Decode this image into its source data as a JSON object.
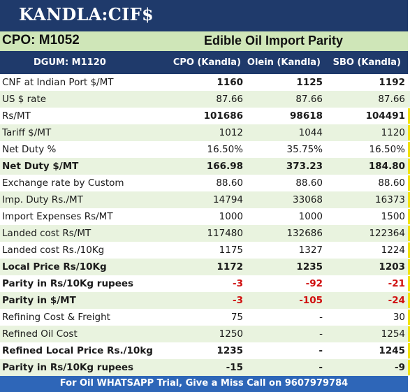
{
  "title": "KANDLA:CIF$",
  "subheader": {
    "code": "CPO: M1052",
    "subject": "Edible Oil Import Parity"
  },
  "columns": [
    "DGUM: M1120",
    "CPO (Kandla)",
    "Olein (Kandla)",
    "SBO (Kandla)"
  ],
  "rows": [
    {
      "label": "CNF at Indian Port $/MT",
      "cpo": "1160",
      "olein": "1125",
      "sbo": "1192",
      "bold_values": true,
      "bold_label": false,
      "negative": false,
      "marker": false
    },
    {
      "label": "US $ rate",
      "cpo": "87.66",
      "olein": "87.66",
      "sbo": "87.66",
      "bold_values": false,
      "bold_label": false,
      "negative": false,
      "marker": false
    },
    {
      "label": "Rs/MT",
      "cpo": "101686",
      "olein": "98618",
      "sbo": "104491",
      "bold_values": true,
      "bold_label": false,
      "negative": false,
      "marker": true
    },
    {
      "label": "Tariff $/MT",
      "cpo": "1012",
      "olein": "1044",
      "sbo": "1120",
      "bold_values": false,
      "bold_label": false,
      "negative": false,
      "marker": true
    },
    {
      "label": "Net Duty %",
      "cpo": "16.50%",
      "olein": "35.75%",
      "sbo": "16.50%",
      "bold_values": false,
      "bold_label": false,
      "negative": false,
      "marker": true
    },
    {
      "label": "Net Duty $/MT",
      "cpo": "166.98",
      "olein": "373.23",
      "sbo": "184.80",
      "bold_values": true,
      "bold_label": true,
      "negative": false,
      "marker": true
    },
    {
      "label": "Exchange rate by Custom",
      "cpo": "88.60",
      "olein": "88.60",
      "sbo": "88.60",
      "bold_values": false,
      "bold_label": false,
      "negative": false,
      "marker": true
    },
    {
      "label": "Imp. Duty Rs./MT",
      "cpo": "14794",
      "olein": "33068",
      "sbo": "16373",
      "bold_values": false,
      "bold_label": false,
      "negative": false,
      "marker": true
    },
    {
      "label": "Import Expenses Rs/MT",
      "cpo": "1000",
      "olein": "1000",
      "sbo": "1500",
      "bold_values": false,
      "bold_label": false,
      "negative": false,
      "marker": true
    },
    {
      "label": "Landed cost Rs/MT",
      "cpo": "117480",
      "olein": "132686",
      "sbo": "122364",
      "bold_values": false,
      "bold_label": false,
      "negative": false,
      "marker": true
    },
    {
      "label": "Landed cost Rs./10Kg",
      "cpo": "1175",
      "olein": "1327",
      "sbo": "1224",
      "bold_values": false,
      "bold_label": false,
      "negative": false,
      "marker": true
    },
    {
      "label": "Local Price Rs/10Kg",
      "cpo": "1172",
      "olein": "1235",
      "sbo": "1203",
      "bold_values": true,
      "bold_label": true,
      "negative": false,
      "marker": true
    },
    {
      "label": "Parity in Rs/10Kg rupees",
      "cpo": "-3",
      "olein": "-92",
      "sbo": "-21",
      "bold_values": true,
      "bold_label": true,
      "negative": true,
      "marker": true
    },
    {
      "label": "Parity in $/MT",
      "cpo": "-3",
      "olein": "-105",
      "sbo": "-24",
      "bold_values": true,
      "bold_label": true,
      "negative": true,
      "marker": true
    },
    {
      "label": "Refining Cost & Freight",
      "cpo": "75",
      "olein": "-",
      "sbo": "30",
      "bold_values": false,
      "bold_label": false,
      "negative": false,
      "marker": true
    },
    {
      "label": "Refined Oil Cost",
      "cpo": "1250",
      "olein": "-",
      "sbo": "1254",
      "bold_values": false,
      "bold_label": false,
      "negative": false,
      "marker": true
    },
    {
      "label": "Refined Local Price Rs./10kg",
      "cpo": "1235",
      "olein": "-",
      "sbo": "1245",
      "bold_values": true,
      "bold_label": true,
      "negative": false,
      "marker": true
    },
    {
      "label": "Parity in Rs/10Kg rupees",
      "cpo": "-15",
      "olein": "-",
      "sbo": "-9",
      "bold_values": true,
      "bold_label": true,
      "negative": false,
      "marker": true
    }
  ],
  "footer": "For Oil WHATSAPP Trial, Give a Miss Call on 9607979784"
}
